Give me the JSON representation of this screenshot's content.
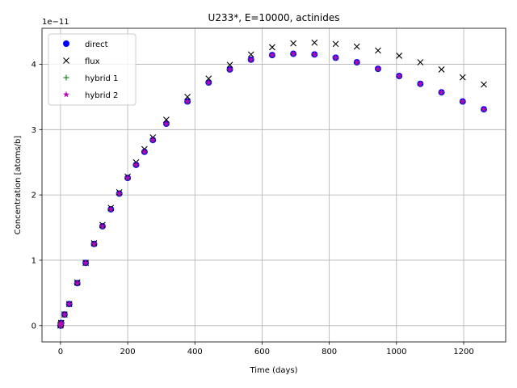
{
  "chart_data": {
    "type": "scatter",
    "title": "U233*, E=10000, actinides",
    "xlabel": "Time (days)",
    "ylabel": "Concentration [atoms/b]",
    "offset_text": "1e−11",
    "xlim": [
      -55,
      1325
    ],
    "ylim": [
      -0.25,
      4.55
    ],
    "y_scale_factor": 1e-11,
    "grid": true,
    "legend_position": "upper left",
    "x_ticks": [
      0,
      200,
      400,
      600,
      800,
      1000,
      1200
    ],
    "x_tick_labels": [
      "0",
      "200",
      "400",
      "600",
      "800",
      "1000",
      "1200"
    ],
    "y_ticks": [
      0,
      1,
      2,
      3,
      4
    ],
    "y_tick_labels": [
      "0",
      "1",
      "2",
      "3",
      "4"
    ],
    "x": [
      0,
      1,
      2,
      12,
      26,
      50,
      75,
      100,
      125,
      150,
      175,
      200,
      225,
      250,
      275,
      315,
      378,
      441,
      504,
      567,
      630,
      693,
      756,
      819,
      882,
      945,
      1008,
      1071,
      1134,
      1197,
      1260
    ],
    "series": [
      {
        "name": "direct",
        "marker": "circle",
        "color": "#0000ff",
        "values": [
          0.0,
          0.02,
          0.04,
          0.17,
          0.33,
          0.65,
          0.96,
          1.25,
          1.52,
          1.78,
          2.02,
          2.26,
          2.46,
          2.66,
          2.84,
          3.09,
          3.43,
          3.72,
          3.92,
          4.07,
          4.14,
          4.16,
          4.15,
          4.1,
          4.03,
          3.93,
          3.82,
          3.7,
          3.57,
          3.43,
          3.31
        ]
      },
      {
        "name": "flux",
        "marker": "x",
        "color": "#000000",
        "values": [
          0.0,
          0.02,
          0.04,
          0.17,
          0.33,
          0.66,
          0.96,
          1.26,
          1.54,
          1.8,
          2.04,
          2.28,
          2.5,
          2.7,
          2.88,
          3.15,
          3.5,
          3.78,
          3.99,
          4.15,
          4.26,
          4.32,
          4.33,
          4.31,
          4.27,
          4.21,
          4.13,
          4.03,
          3.92,
          3.8,
          3.69
        ]
      },
      {
        "name": "hybrid 1",
        "marker": "plus",
        "color": "#008000",
        "values": [
          0.0,
          0.02,
          0.04,
          0.17,
          0.33,
          0.65,
          0.96,
          1.25,
          1.52,
          1.78,
          2.02,
          2.26,
          2.46,
          2.66,
          2.84,
          3.09,
          3.43,
          3.72,
          3.92,
          4.07,
          4.14,
          4.16,
          4.15,
          4.1,
          4.03,
          3.93,
          3.82,
          3.7,
          3.57,
          3.43,
          3.31
        ]
      },
      {
        "name": "hybrid 2",
        "marker": "star",
        "color": "#bf00bf",
        "values": [
          0.0,
          0.02,
          0.04,
          0.17,
          0.33,
          0.65,
          0.96,
          1.25,
          1.52,
          1.78,
          2.02,
          2.26,
          2.46,
          2.66,
          2.84,
          3.09,
          3.43,
          3.72,
          3.92,
          4.07,
          4.14,
          4.16,
          4.15,
          4.1,
          4.03,
          3.93,
          3.82,
          3.7,
          3.57,
          3.43,
          3.31
        ]
      }
    ]
  }
}
